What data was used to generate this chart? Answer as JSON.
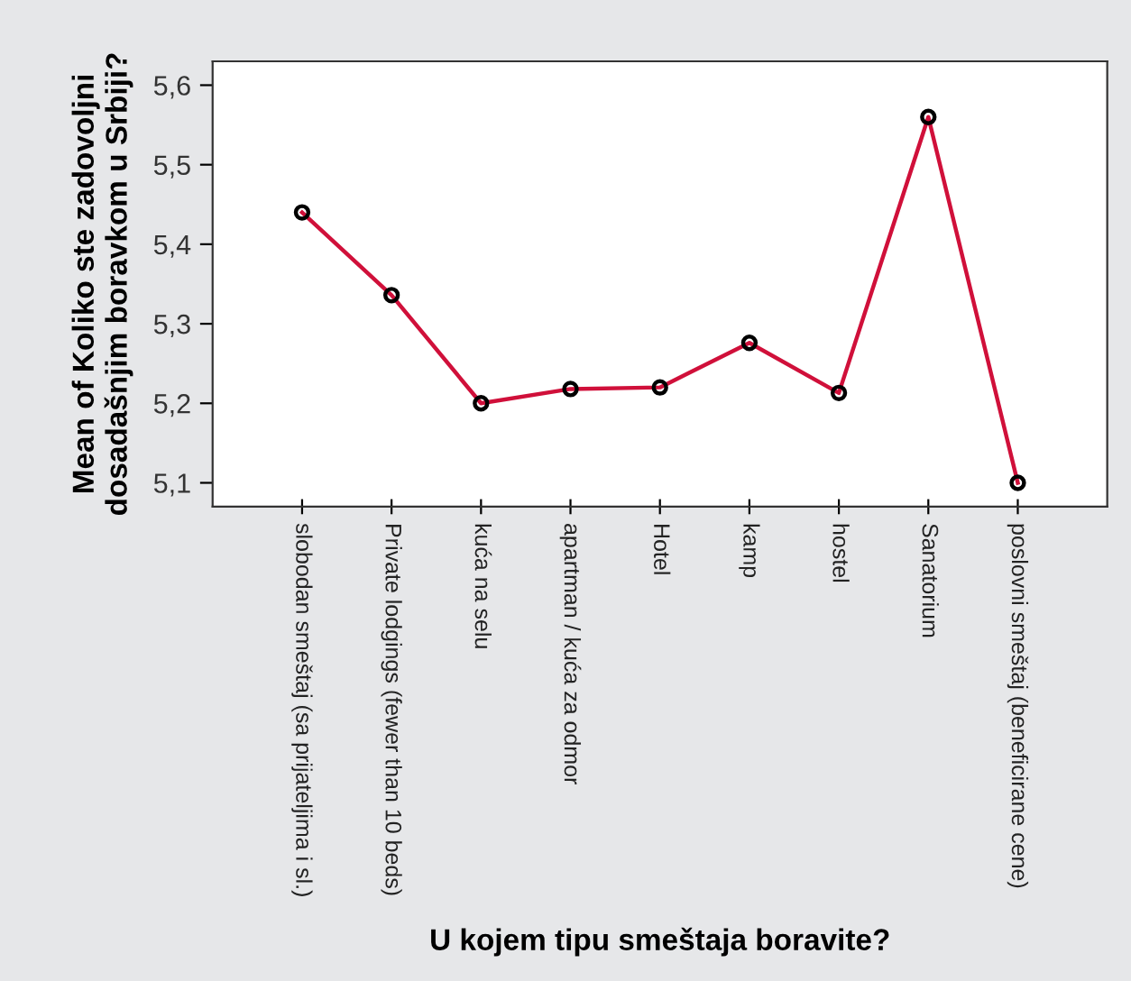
{
  "chart_data": {
    "type": "line",
    "xlabel": "U kojem tipu smeštaja boravite?",
    "ylabel": "Mean of Koliko ste zadovoljni\ndosadašnjim boravkom u Srbiji?",
    "categories": [
      "slobodan smeštaj (sa prijateljima i sl.)",
      "Private lodgings (fewer than 10 beds)",
      "kuća na selu",
      "apartman / kuća za odmor",
      "Hotel",
      "kamp",
      "hostel",
      "Sanatorium",
      "poslovni smeštaj (beneficirane cene)"
    ],
    "series": [
      {
        "color": "#d0103a",
        "values": [
          5.44,
          5.336,
          5.2,
          5.218,
          5.22,
          5.276,
          5.213,
          5.56,
          5.1
        ]
      }
    ],
    "ylim": [
      5.07,
      5.63
    ],
    "yticks": [
      {
        "value": 5.1,
        "label": "5,1"
      },
      {
        "value": 5.2,
        "label": "5,2"
      },
      {
        "value": 5.3,
        "label": "5,3"
      },
      {
        "value": 5.4,
        "label": "5,4"
      },
      {
        "value": 5.5,
        "label": "5,5"
      },
      {
        "value": 5.6,
        "label": "5,6"
      }
    ],
    "marker": "circle",
    "line_style": "solid",
    "grid": false
  }
}
